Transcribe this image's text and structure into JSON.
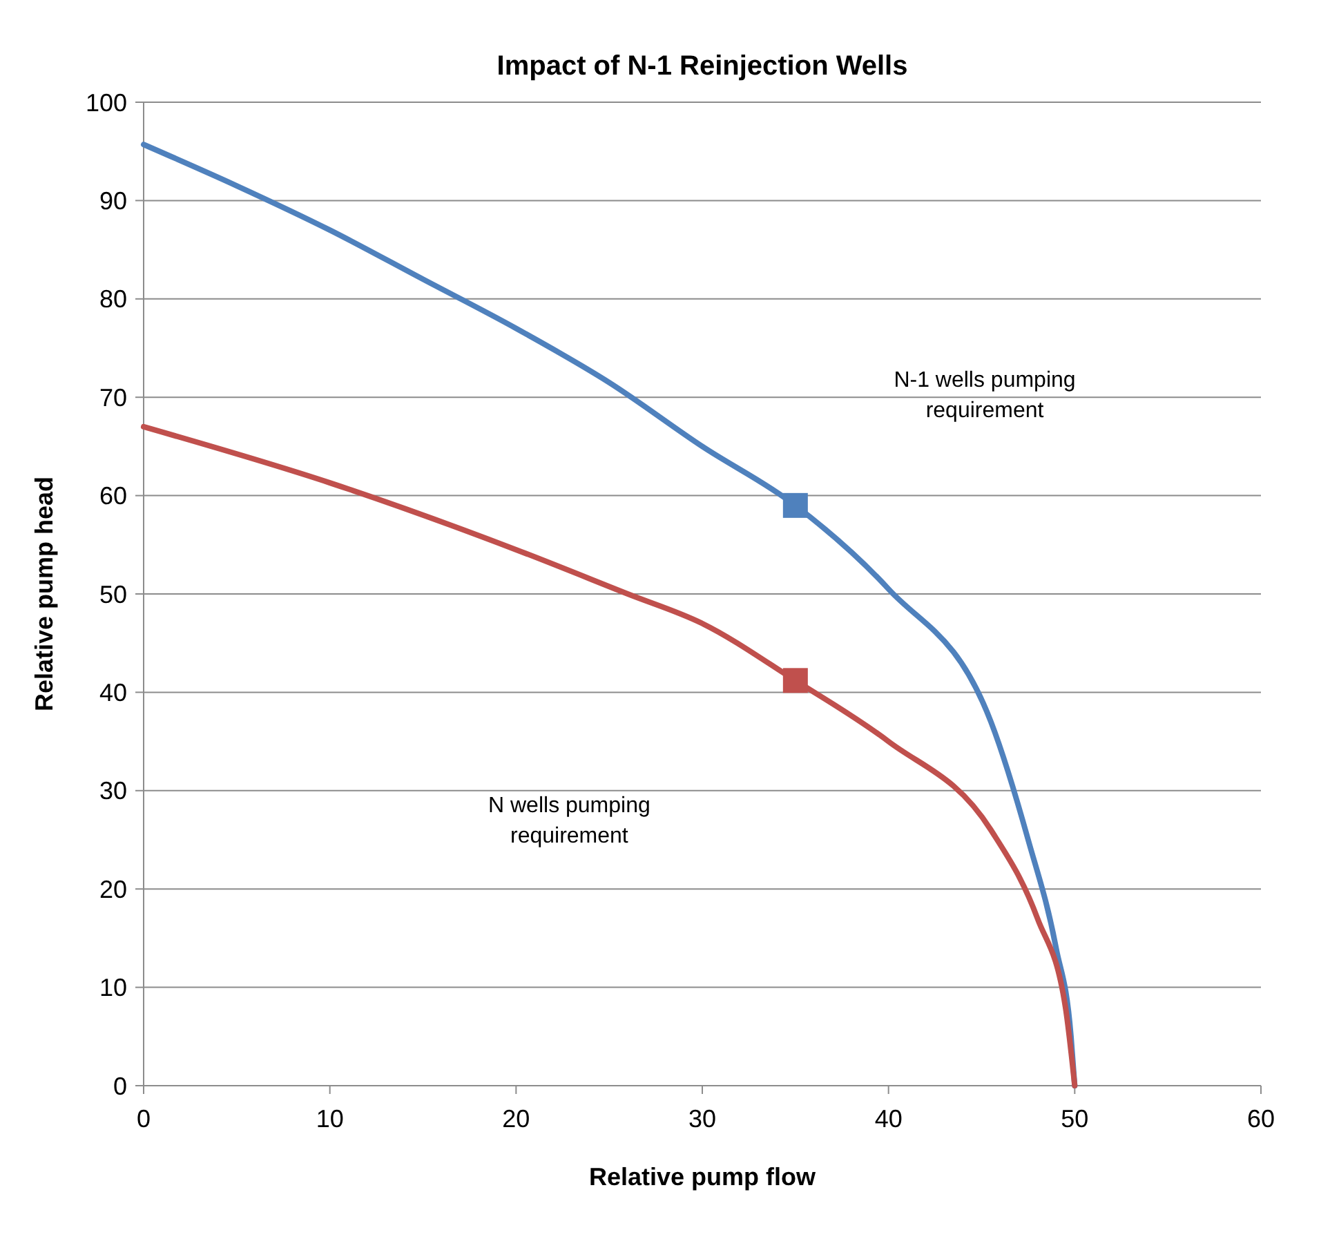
{
  "chart_data": {
    "type": "line",
    "title": "Impact of N-1 Reinjection Wells",
    "xlabel": "Relative pump flow",
    "ylabel": "Relative pump head",
    "xlim": [
      0,
      60
    ],
    "xticks": [
      0,
      10,
      20,
      30,
      40,
      50,
      60
    ],
    "ylim": [
      0,
      100
    ],
    "yticks": [
      0,
      10,
      20,
      30,
      40,
      50,
      60,
      70,
      80,
      90,
      100
    ],
    "grid": "y",
    "series": [
      {
        "color": "#4f81bd",
        "x": [
          0,
          5,
          10,
          15,
          20,
          25,
          30,
          35,
          40,
          45.5,
          47.5,
          49,
          49.8,
          50
        ],
        "values": [
          95.7,
          91.5,
          87,
          82,
          77,
          71.5,
          65,
          59,
          50.5,
          37,
          25,
          14,
          5,
          0
        ],
        "marker": "none"
      },
      {
        "color": "#c0504d",
        "x": [
          0,
          10,
          20,
          26,
          30,
          35,
          40,
          45.5,
          48,
          49.5,
          50
        ],
        "values": [
          67,
          61.3,
          54.5,
          50,
          47,
          41.2,
          35,
          26,
          17,
          8,
          0
        ],
        "marker": "none"
      },
      {
        "type": "scatter",
        "color": "#4f81bd",
        "x": [
          35
        ],
        "values": [
          59
        ],
        "marker": "square"
      },
      {
        "type": "scatter",
        "color": "#c0504d",
        "x": [
          35
        ],
        "values": [
          41.2
        ],
        "marker": "square"
      }
    ],
    "annotations": [
      "N-1 wells pumping requirement",
      "N wells pumping requirement"
    ]
  }
}
